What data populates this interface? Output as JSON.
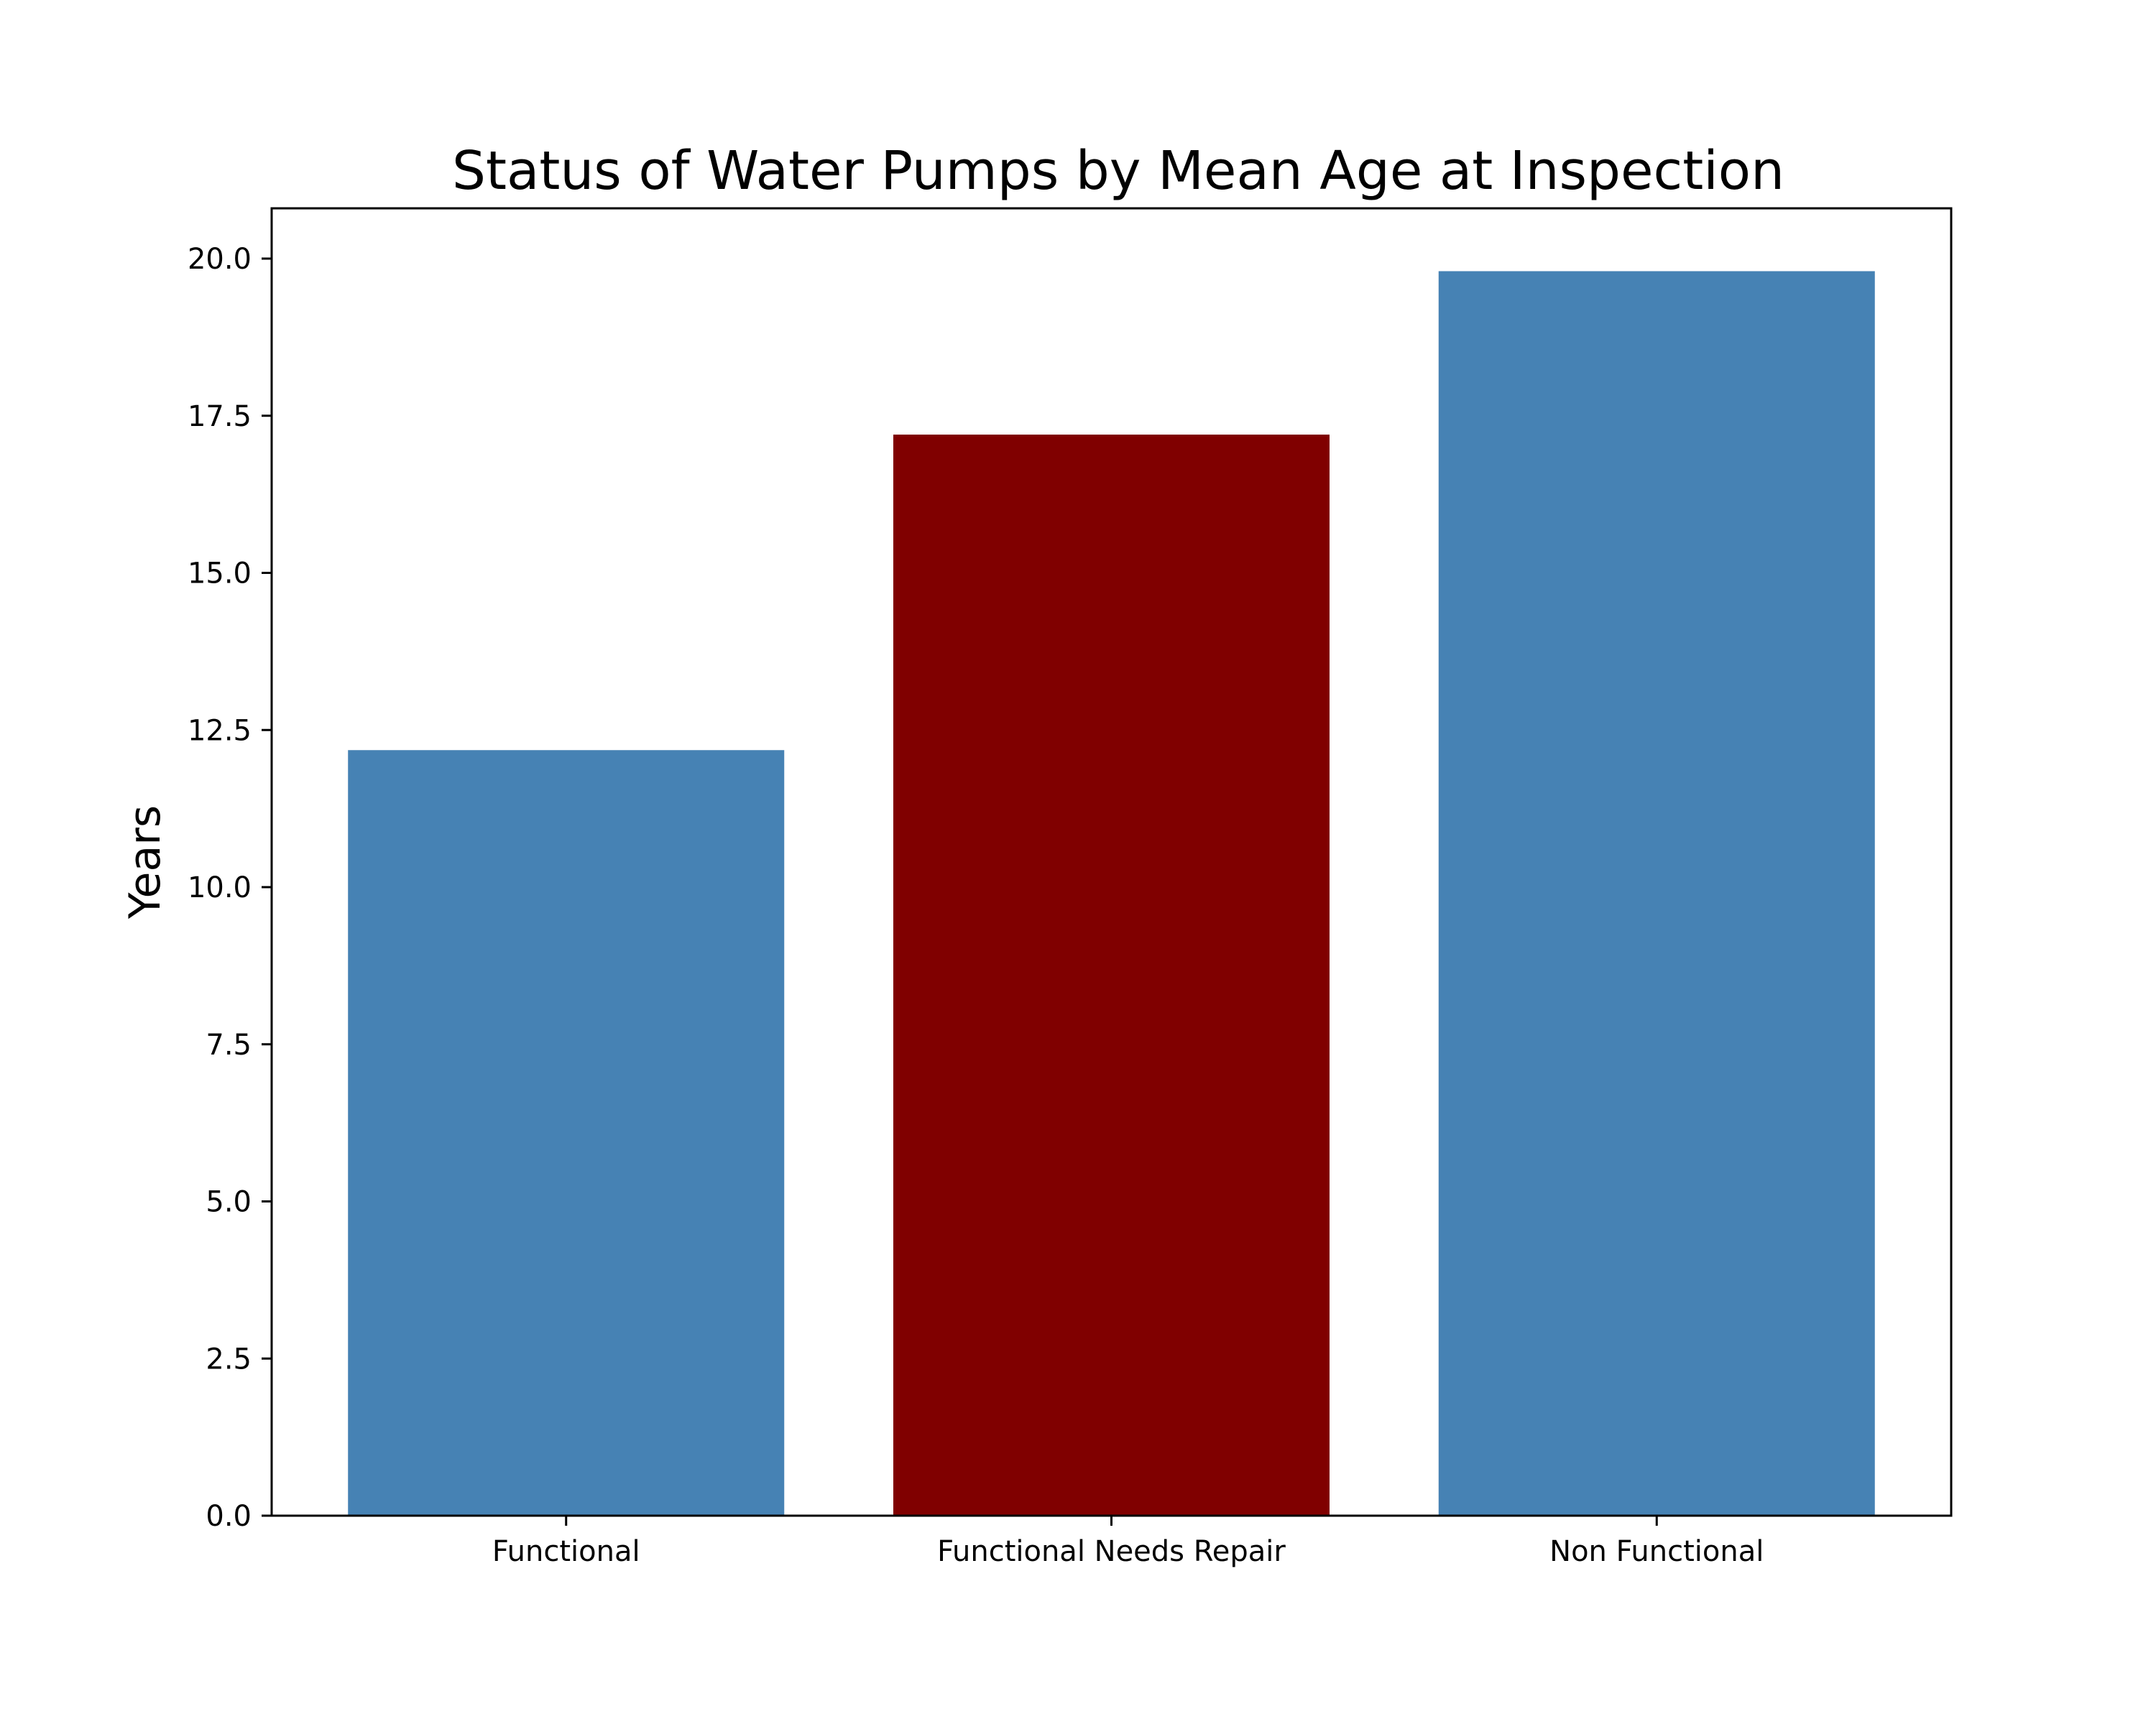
{
  "chart_data": {
    "type": "bar",
    "title": "Status of Water Pumps by Mean Age at Inspection",
    "xlabel": "",
    "ylabel": "Years",
    "categories": [
      "Functional",
      "Functional Needs Repair",
      "Non Functional"
    ],
    "values": [
      12.18,
      17.2,
      19.8
    ],
    "bar_colors": [
      "#4682b4",
      "#800000",
      "#4682b4"
    ],
    "ylim": [
      0,
      20.8
    ],
    "yticks": [
      "0.0",
      "2.5",
      "5.0",
      "7.5",
      "10.0",
      "12.5",
      "15.0",
      "17.5",
      "20.0"
    ],
    "grid": false,
    "legend": "none"
  }
}
